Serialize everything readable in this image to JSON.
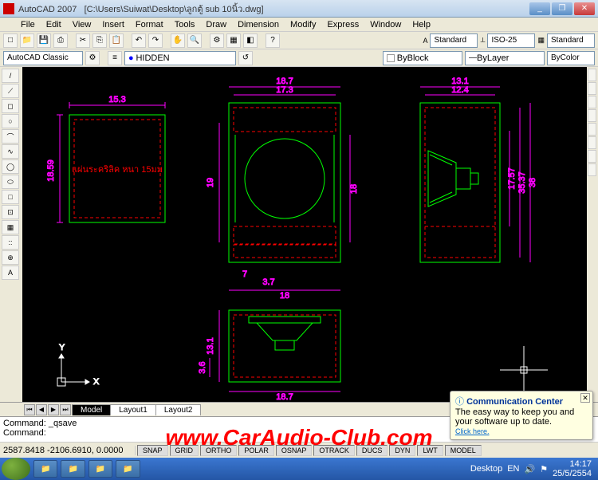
{
  "window": {
    "app_name": "AutoCAD 2007",
    "file_path": "[C:\\Users\\Suiwat\\Desktop\\ลูกตู้ sub 10นิ้ว.dwg]",
    "min": "_",
    "max": "❐",
    "close": "✕"
  },
  "menu": [
    "File",
    "Edit",
    "View",
    "Insert",
    "Format",
    "Tools",
    "Draw",
    "Dimension",
    "Modify",
    "Express",
    "Window",
    "Help"
  ],
  "toolbar2": {
    "workspace": "AutoCAD Classic",
    "layer": "HIDDEN",
    "std1": "Standard",
    "iso": "ISO-25",
    "std2": "Standard"
  },
  "toolbar3": {
    "byblock": "ByBlock",
    "bylayer": "ByLayer",
    "bycolor": "ByColor"
  },
  "left_tools": [
    "/",
    "⟋",
    "◻",
    "○",
    "⌒",
    "∿",
    "◯",
    "⬭",
    "□",
    "⊡",
    "▦",
    "::",
    "⊕",
    "A"
  ],
  "canvas": {
    "view1": {
      "dim_top": "15.3",
      "dim_left": "18.59",
      "text": "แผ่นระคริลิค หนา 15มม",
      "text_color": "#ff0000"
    },
    "view2": {
      "dim_top1": "18.7",
      "dim_top2": "17.3",
      "dim_left": "19",
      "dim_right": "18",
      "dim_bot1": "7",
      "dim_bot2": "3.7",
      "dim_bot3": "18"
    },
    "view3": {
      "dim_top1": "13.1",
      "dim_top2": "12.4",
      "dim_right1": "17.57",
      "dim_right2": "35.37",
      "dim_right3": "38"
    },
    "view4": {
      "dim_left": "13.1",
      "dim_bot": "18.7",
      "dim_l2": "3.6"
    },
    "ucs": {
      "y": "Y",
      "x": "X"
    },
    "colors": {
      "dim": "#ff00ff",
      "outline": "#00ff00",
      "dashed": "#ff0000",
      "bg": "#000000"
    }
  },
  "tabs": [
    "Model",
    "Layout1",
    "Layout2"
  ],
  "cmd": {
    "line1": "Command: _qsave",
    "line2": "Command:"
  },
  "status": {
    "coords": "2587.8418 -2106.6910, 0.0000",
    "modes": [
      "SNAP",
      "GRID",
      "ORTHO",
      "POLAR",
      "OSNAP",
      "OTRACK",
      "DUCS",
      "DYN",
      "LWT",
      "MODEL"
    ]
  },
  "notif": {
    "title": "Communication Center",
    "text": "The easy way to keep you and your software up to date.",
    "link": "Click here."
  },
  "taskbar": {
    "desktop": "Desktop",
    "lang": "EN",
    "time": "14:17",
    "date": "25/5/2554"
  },
  "watermark": "www.CarAudio-Club.com"
}
